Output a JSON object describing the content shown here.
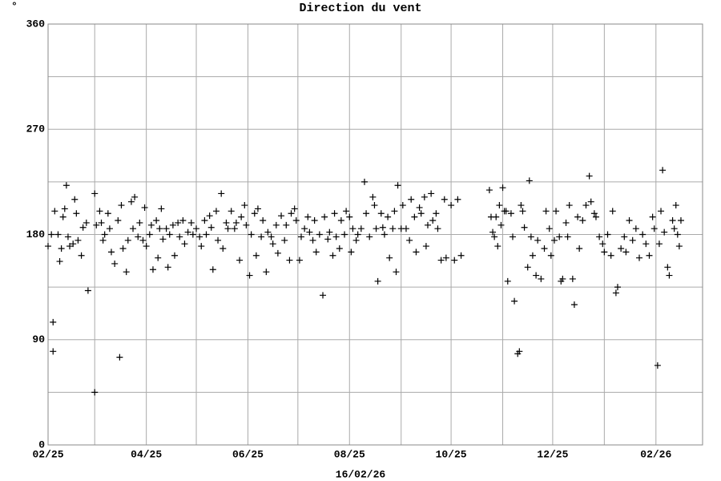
{
  "chart_data": {
    "type": "scatter",
    "title": "Direction du vent",
    "unit_symbol": "°",
    "xlabel": "16/02/26",
    "color": "#000000",
    "xlim": [
      0,
      393
    ],
    "xticks": [
      {
        "value": 0,
        "label": "02/25"
      },
      {
        "value": 59,
        "label": "04/25"
      },
      {
        "value": 120,
        "label": "06/25"
      },
      {
        "value": 181,
        "label": "08/25"
      },
      {
        "value": 242,
        "label": "10/25"
      },
      {
        "value": 303,
        "label": "12/25"
      },
      {
        "value": 365,
        "label": "02/26"
      }
    ],
    "xminor": [
      28,
      89,
      150,
      212,
      273,
      334,
      393
    ],
    "ylim": [
      0,
      360
    ],
    "yticks": [
      0,
      90,
      180,
      270,
      360
    ],
    "yminor": [
      45,
      135,
      225,
      315
    ],
    "grid": true,
    "x": [
      0,
      2,
      3,
      3,
      4,
      6,
      7,
      8,
      9,
      10,
      11,
      12,
      13,
      15,
      16,
      17,
      18,
      20,
      21,
      23,
      24,
      28,
      28,
      29,
      31,
      32,
      33,
      34,
      36,
      37,
      38,
      40,
      42,
      43,
      44,
      45,
      47,
      48,
      50,
      51,
      52,
      54,
      55,
      57,
      58,
      59,
      61,
      62,
      63,
      65,
      66,
      67,
      68,
      69,
      71,
      72,
      73,
      75,
      76,
      78,
      79,
      81,
      82,
      84,
      86,
      87,
      89,
      91,
      92,
      94,
      95,
      97,
      98,
      99,
      101,
      102,
      104,
      105,
      107,
      108,
      110,
      112,
      113,
      115,
      116,
      118,
      119,
      121,
      122,
      124,
      125,
      126,
      128,
      129,
      131,
      132,
      134,
      135,
      137,
      138,
      140,
      142,
      143,
      145,
      146,
      148,
      149,
      151,
      152,
      154,
      156,
      157,
      159,
      160,
      161,
      163,
      165,
      166,
      168,
      169,
      171,
      172,
      173,
      175,
      176,
      178,
      179,
      181,
      182,
      183,
      185,
      186,
      188,
      190,
      191,
      193,
      195,
      196,
      197,
      198,
      200,
      201,
      202,
      204,
      205,
      207,
      208,
      209,
      210,
      212,
      213,
      215,
      217,
      218,
      220,
      221,
      223,
      224,
      226,
      227,
      228,
      230,
      231,
      233,
      234,
      236,
      238,
      239,
      242,
      244,
      246,
      248,
      265,
      266,
      267,
      268,
      269,
      270,
      271,
      272,
      273,
      274,
      275,
      276,
      278,
      279,
      280,
      282,
      283,
      284,
      285,
      286,
      288,
      289,
      290,
      291,
      293,
      294,
      296,
      298,
      299,
      301,
      302,
      304,
      305,
      307,
      308,
      309,
      311,
      312,
      313,
      315,
      316,
      318,
      319,
      321,
      323,
      325,
      326,
      328,
      329,
      331,
      333,
      334,
      336,
      338,
      339,
      341,
      342,
      344,
      346,
      347,
      349,
      351,
      353,
      355,
      357,
      359,
      361,
      363,
      364,
      366,
      367,
      368,
      369,
      370,
      372,
      373,
      375,
      376,
      377,
      378,
      379,
      380
    ],
    "values": [
      170,
      180,
      105,
      80,
      200,
      180,
      157,
      168,
      195,
      202,
      222,
      178,
      170,
      172,
      210,
      198,
      175,
      162,
      186,
      190,
      132,
      45,
      215,
      188,
      200,
      190,
      175,
      180,
      198,
      185,
      165,
      155,
      192,
      75,
      205,
      168,
      148,
      175,
      208,
      185,
      212,
      178,
      190,
      175,
      203,
      170,
      180,
      188,
      150,
      192,
      160,
      185,
      202,
      176,
      185,
      152,
      180,
      188,
      162,
      190,
      178,
      192,
      172,
      182,
      190,
      180,
      185,
      178,
      170,
      192,
      180,
      196,
      186,
      150,
      200,
      175,
      215,
      168,
      190,
      185,
      200,
      185,
      190,
      158,
      195,
      205,
      188,
      145,
      180,
      198,
      162,
      202,
      178,
      192,
      148,
      182,
      178,
      172,
      188,
      164,
      196,
      175,
      188,
      158,
      198,
      202,
      192,
      158,
      178,
      185,
      195,
      182,
      175,
      192,
      165,
      180,
      128,
      195,
      176,
      182,
      162,
      198,
      178,
      168,
      192,
      180,
      200,
      195,
      165,
      185,
      175,
      180,
      185,
      225,
      198,
      178,
      212,
      205,
      185,
      140,
      198,
      186,
      180,
      195,
      160,
      185,
      200,
      148,
      222,
      185,
      205,
      185,
      175,
      210,
      195,
      165,
      203,
      198,
      212,
      170,
      188,
      215,
      192,
      198,
      185,
      158,
      210,
      160,
      205,
      158,
      210,
      162,
      218,
      195,
      182,
      178,
      195,
      170,
      205,
      188,
      220,
      200,
      200,
      140,
      198,
      178,
      123,
      78,
      80,
      205,
      200,
      186,
      152,
      226,
      178,
      162,
      145,
      175,
      142,
      168,
      200,
      185,
      162,
      175,
      200,
      178,
      140,
      142,
      190,
      178,
      205,
      142,
      120,
      195,
      168,
      192,
      205,
      230,
      208,
      198,
      195,
      178,
      172,
      165,
      180,
      162,
      200,
      130,
      135,
      168,
      178,
      165,
      192,
      175,
      185,
      160,
      180,
      172,
      162,
      195,
      185,
      68,
      172,
      200,
      235,
      182,
      152,
      145,
      192,
      185,
      205,
      180,
      170,
      192
    ]
  }
}
